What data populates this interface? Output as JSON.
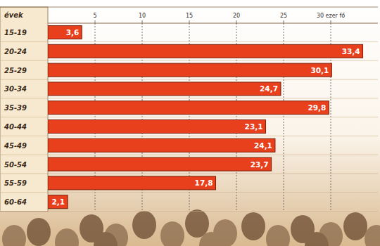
{
  "chart_data": {
    "type": "bar",
    "orientation": "horizontal",
    "y_label": "évek",
    "categories": [
      "15-19",
      "20-24",
      "25-29",
      "30-34",
      "35-39",
      "40-44",
      "45-49",
      "50-54",
      "55-59",
      "60-64"
    ],
    "values": [
      3.6,
      33.4,
      30.1,
      24.7,
      29.8,
      23.1,
      24.1,
      23.7,
      17.8,
      2.1
    ],
    "value_labels": [
      "3,6",
      "33,4",
      "30,1",
      "24,7",
      "29,8",
      "23,1",
      "24,1",
      "23,7",
      "17,8",
      "2,1"
    ],
    "color": "#e8401c",
    "xlim": [
      0,
      35
    ],
    "xticks": [
      5,
      10,
      15,
      20,
      25,
      {
        "value": 30,
        "label": "30 ezer fő"
      }
    ],
    "grid": true,
    "data_labels": true
  }
}
